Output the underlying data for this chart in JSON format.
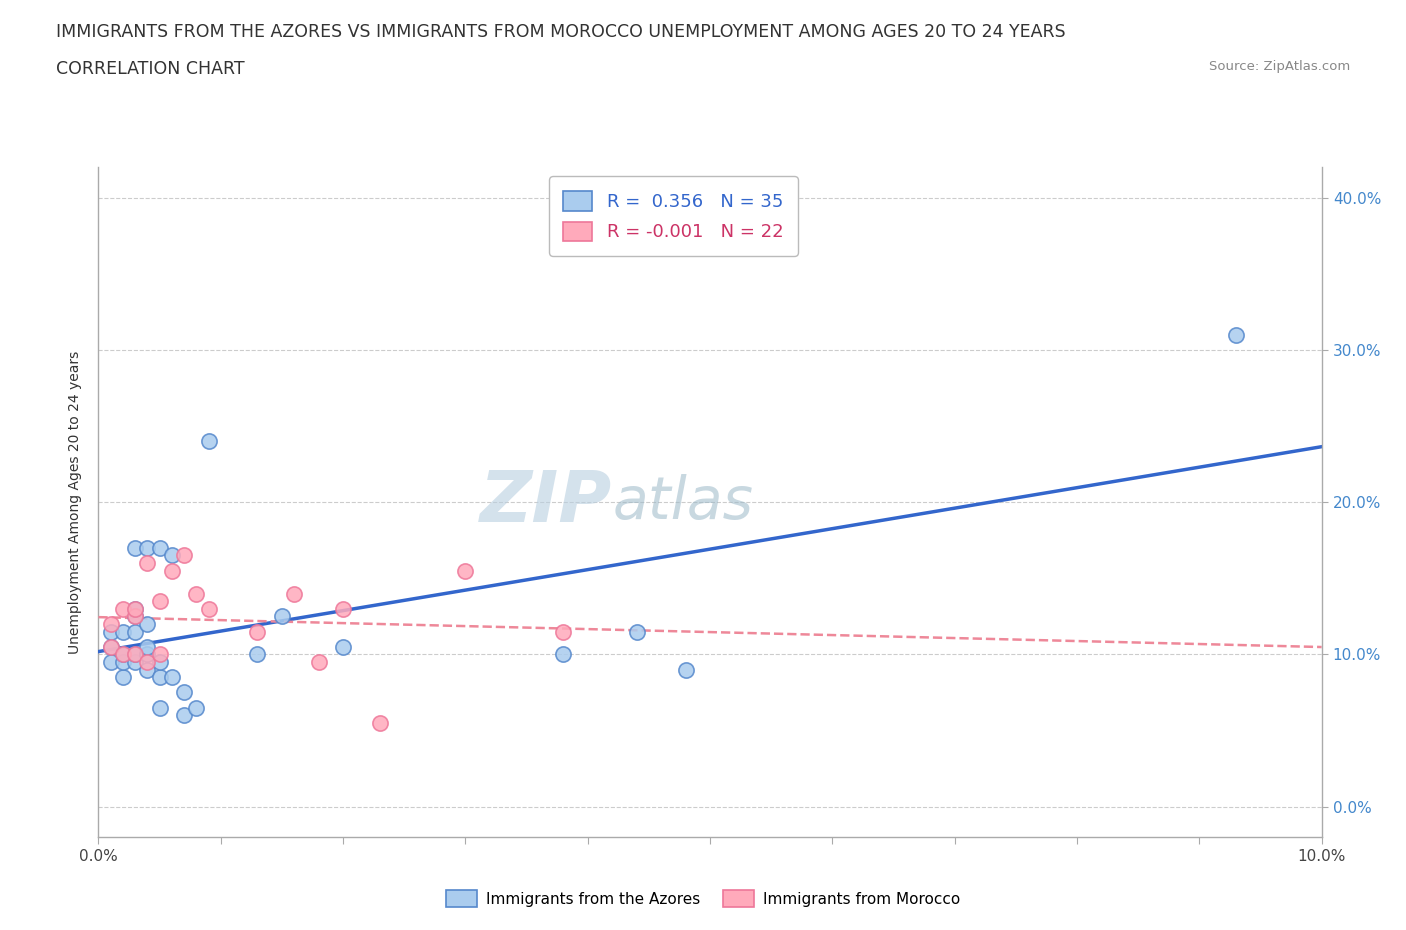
{
  "title_line1": "IMMIGRANTS FROM THE AZORES VS IMMIGRANTS FROM MOROCCO UNEMPLOYMENT AMONG AGES 20 TO 24 YEARS",
  "title_line2": "CORRELATION CHART",
  "source": "Source: ZipAtlas.com",
  "ylabel": "Unemployment Among Ages 20 to 24 years",
  "watermark_part1": "ZIP",
  "watermark_part2": "atlas",
  "legend_box": {
    "azores_label": "R =  0.356   N = 35",
    "morocco_label": "R = -0.001   N = 22"
  },
  "bottom_legend": [
    "Immigrants from the Azores",
    "Immigrants from Morocco"
  ],
  "azores_fill_color": "#aaccee",
  "azores_edge_color": "#5588cc",
  "morocco_fill_color": "#ffaabb",
  "morocco_edge_color": "#ee7799",
  "azores_line_color": "#3366cc",
  "morocco_line_color": "#ee8899",
  "xlim": [
    0.0,
    0.1
  ],
  "ylim": [
    -0.02,
    0.42
  ],
  "xtick_positions": [
    0.0,
    0.01,
    0.02,
    0.03,
    0.04,
    0.05,
    0.06,
    0.07,
    0.08,
    0.09,
    0.1
  ],
  "xtick_labels_show": {
    "0.0": "0.0%",
    "0.1": "10.0%"
  },
  "ytick_positions": [
    0.0,
    0.1,
    0.2,
    0.3,
    0.4
  ],
  "ytick_labels": [
    "0.0%",
    "10.0%",
    "20.0%",
    "30.0%",
    "40.0%"
  ],
  "azores_x": [
    0.001,
    0.001,
    0.001,
    0.002,
    0.002,
    0.002,
    0.002,
    0.003,
    0.003,
    0.003,
    0.003,
    0.003,
    0.003,
    0.004,
    0.004,
    0.004,
    0.004,
    0.004,
    0.005,
    0.005,
    0.005,
    0.005,
    0.006,
    0.006,
    0.007,
    0.007,
    0.008,
    0.009,
    0.013,
    0.015,
    0.02,
    0.038,
    0.044,
    0.048,
    0.093
  ],
  "azores_y": [
    0.095,
    0.105,
    0.115,
    0.085,
    0.095,
    0.1,
    0.115,
    0.095,
    0.1,
    0.115,
    0.125,
    0.13,
    0.17,
    0.09,
    0.1,
    0.105,
    0.12,
    0.17,
    0.065,
    0.085,
    0.095,
    0.17,
    0.085,
    0.165,
    0.06,
    0.075,
    0.065,
    0.24,
    0.1,
    0.125,
    0.105,
    0.1,
    0.115,
    0.09,
    0.31
  ],
  "morocco_x": [
    0.001,
    0.001,
    0.002,
    0.002,
    0.003,
    0.003,
    0.003,
    0.004,
    0.004,
    0.005,
    0.005,
    0.006,
    0.007,
    0.008,
    0.009,
    0.013,
    0.016,
    0.018,
    0.02,
    0.023,
    0.03,
    0.038
  ],
  "morocco_y": [
    0.105,
    0.12,
    0.1,
    0.13,
    0.1,
    0.125,
    0.13,
    0.095,
    0.16,
    0.1,
    0.135,
    0.155,
    0.165,
    0.14,
    0.13,
    0.115,
    0.14,
    0.095,
    0.13,
    0.055,
    0.155,
    0.115
  ],
  "grid_color": "#cccccc",
  "background_color": "#ffffff",
  "title_fontsize": 12.5,
  "subtitle_fontsize": 12.5,
  "axis_label_fontsize": 10,
  "tick_fontsize": 11,
  "legend_fontsize": 13,
  "watermark_fontsize1": 52,
  "watermark_fontsize2": 42,
  "watermark_color1": "#b8cfe0",
  "watermark_color2": "#9bb8c8",
  "legend_text_color_azores": "#3366cc",
  "legend_text_color_morocco": "#cc3366"
}
